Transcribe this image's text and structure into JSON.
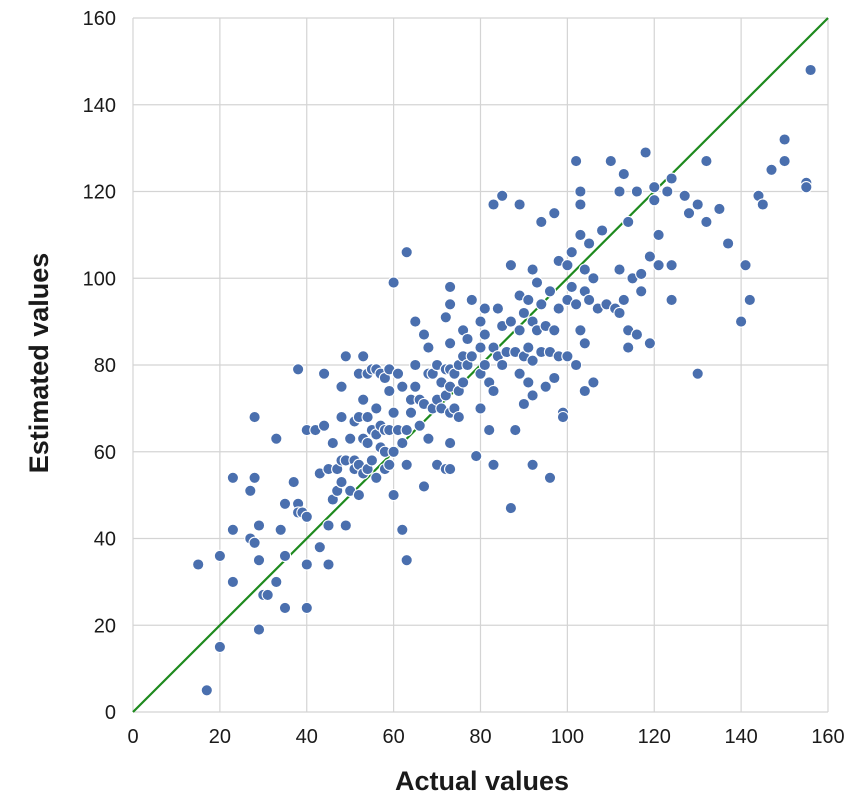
{
  "chart_data": {
    "type": "scatter",
    "title": "",
    "xlabel": "Actual values",
    "ylabel": "Estimated values",
    "xlim": [
      0,
      160
    ],
    "ylim": [
      0,
      160
    ],
    "xticks": [
      "0",
      "20",
      "40",
      "60",
      "80",
      "100",
      "120",
      "140",
      "160"
    ],
    "yticks": [
      "0",
      "20",
      "40",
      "60",
      "80",
      "100",
      "120",
      "140",
      "160"
    ],
    "grid": true,
    "legend": "none",
    "colors": {
      "points": "#4a6fae",
      "point_edge": "#ffffff",
      "reference_line": "#1e8a1e",
      "grid": "#d4d4d4"
    },
    "reference_line": {
      "from": [
        0,
        0
      ],
      "to": [
        160,
        160
      ]
    },
    "series": [
      {
        "points": [
          [
            15,
            34
          ],
          [
            17,
            5
          ],
          [
            20,
            15
          ],
          [
            20,
            36
          ],
          [
            23,
            54
          ],
          [
            23,
            42
          ],
          [
            23,
            30
          ],
          [
            27,
            51
          ],
          [
            28,
            54
          ],
          [
            28,
            68
          ],
          [
            27,
            40
          ],
          [
            28,
            39
          ],
          [
            29,
            43
          ],
          [
            29,
            35
          ],
          [
            29,
            19
          ],
          [
            30,
            27
          ],
          [
            31,
            27
          ],
          [
            33,
            30
          ],
          [
            33,
            63
          ],
          [
            34,
            42
          ],
          [
            35,
            48
          ],
          [
            35,
            36
          ],
          [
            35,
            24
          ],
          [
            37,
            53
          ],
          [
            38,
            48
          ],
          [
            38,
            79
          ],
          [
            38,
            46
          ],
          [
            39,
            46
          ],
          [
            40,
            65
          ],
          [
            40,
            45
          ],
          [
            40,
            34
          ],
          [
            40,
            24
          ],
          [
            42,
            65
          ],
          [
            43,
            55
          ],
          [
            43,
            38
          ],
          [
            44,
            78
          ],
          [
            44,
            66
          ],
          [
            45,
            56
          ],
          [
            45,
            43
          ],
          [
            45,
            34
          ],
          [
            46,
            62
          ],
          [
            46,
            49
          ],
          [
            47,
            56
          ],
          [
            47,
            51
          ],
          [
            48,
            75
          ],
          [
            48,
            68
          ],
          [
            48,
            58
          ],
          [
            48,
            53
          ],
          [
            49,
            82
          ],
          [
            49,
            58
          ],
          [
            49,
            43
          ],
          [
            50,
            63
          ],
          [
            50,
            51
          ],
          [
            51,
            67
          ],
          [
            51,
            58
          ],
          [
            51,
            56
          ],
          [
            52,
            78
          ],
          [
            52,
            68
          ],
          [
            52,
            57
          ],
          [
            52,
            50
          ],
          [
            53,
            82
          ],
          [
            53,
            72
          ],
          [
            53,
            63
          ],
          [
            53,
            55
          ],
          [
            54,
            78
          ],
          [
            54,
            68
          ],
          [
            54,
            62
          ],
          [
            54,
            56
          ],
          [
            55,
            79
          ],
          [
            55,
            65
          ],
          [
            55,
            58
          ],
          [
            56,
            79
          ],
          [
            56,
            70
          ],
          [
            56,
            64
          ],
          [
            56,
            54
          ],
          [
            57,
            78
          ],
          [
            57,
            66
          ],
          [
            57,
            61
          ],
          [
            58,
            77
          ],
          [
            58,
            65
          ],
          [
            58,
            60
          ],
          [
            58,
            56
          ],
          [
            59,
            79
          ],
          [
            59,
            74
          ],
          [
            59,
            65
          ],
          [
            59,
            57
          ],
          [
            60,
            99
          ],
          [
            60,
            69
          ],
          [
            60,
            60
          ],
          [
            60,
            50
          ],
          [
            61,
            78
          ],
          [
            61,
            65
          ],
          [
            62,
            75
          ],
          [
            62,
            62
          ],
          [
            62,
            42
          ],
          [
            63,
            106
          ],
          [
            63,
            65
          ],
          [
            63,
            57
          ],
          [
            63,
            35
          ],
          [
            64,
            72
          ],
          [
            64,
            69
          ],
          [
            65,
            90
          ],
          [
            65,
            80
          ],
          [
            65,
            75
          ],
          [
            66,
            72
          ],
          [
            66,
            66
          ],
          [
            67,
            87
          ],
          [
            67,
            71
          ],
          [
            67,
            52
          ],
          [
            68,
            84
          ],
          [
            68,
            78
          ],
          [
            68,
            63
          ],
          [
            69,
            78
          ],
          [
            69,
            70
          ],
          [
            70,
            80
          ],
          [
            70,
            72
          ],
          [
            70,
            57
          ],
          [
            71,
            76
          ],
          [
            71,
            70
          ],
          [
            72,
            91
          ],
          [
            72,
            79
          ],
          [
            72,
            73
          ],
          [
            72,
            56
          ],
          [
            73,
            98
          ],
          [
            73,
            94
          ],
          [
            73,
            85
          ],
          [
            73,
            79
          ],
          [
            73,
            75
          ],
          [
            73,
            69
          ],
          [
            73,
            62
          ],
          [
            73,
            56
          ],
          [
            74,
            78
          ],
          [
            74,
            70
          ],
          [
            75,
            80
          ],
          [
            75,
            74
          ],
          [
            75,
            68
          ],
          [
            76,
            88
          ],
          [
            76,
            82
          ],
          [
            76,
            76
          ],
          [
            77,
            86
          ],
          [
            77,
            80
          ],
          [
            78,
            95
          ],
          [
            78,
            82
          ],
          [
            79,
            59
          ],
          [
            80,
            90
          ],
          [
            80,
            84
          ],
          [
            80,
            78
          ],
          [
            80,
            70
          ],
          [
            81,
            93
          ],
          [
            81,
            87
          ],
          [
            81,
            80
          ],
          [
            82,
            76
          ],
          [
            82,
            65
          ],
          [
            83,
            117
          ],
          [
            83,
            84
          ],
          [
            83,
            74
          ],
          [
            83,
            57
          ],
          [
            84,
            93
          ],
          [
            84,
            82
          ],
          [
            85,
            119
          ],
          [
            85,
            89
          ],
          [
            85,
            80
          ],
          [
            86,
            83
          ],
          [
            87,
            103
          ],
          [
            87,
            90
          ],
          [
            87,
            47
          ],
          [
            88,
            83
          ],
          [
            88,
            65
          ],
          [
            89,
            117
          ],
          [
            89,
            96
          ],
          [
            89,
            88
          ],
          [
            89,
            78
          ],
          [
            90,
            92
          ],
          [
            90,
            82
          ],
          [
            90,
            71
          ],
          [
            91,
            95
          ],
          [
            91,
            84
          ],
          [
            91,
            76
          ],
          [
            92,
            102
          ],
          [
            92,
            90
          ],
          [
            92,
            81
          ],
          [
            92,
            73
          ],
          [
            92,
            57
          ],
          [
            93,
            99
          ],
          [
            93,
            88
          ],
          [
            94,
            113
          ],
          [
            94,
            94
          ],
          [
            94,
            83
          ],
          [
            95,
            89
          ],
          [
            95,
            75
          ],
          [
            96,
            97
          ],
          [
            96,
            83
          ],
          [
            96,
            54
          ],
          [
            97,
            115
          ],
          [
            97,
            88
          ],
          [
            97,
            77
          ],
          [
            98,
            104
          ],
          [
            98,
            93
          ],
          [
            98,
            82
          ],
          [
            99,
            69
          ],
          [
            99,
            68
          ],
          [
            100,
            103
          ],
          [
            100,
            95
          ],
          [
            100,
            82
          ],
          [
            101,
            106
          ],
          [
            101,
            98
          ],
          [
            102,
            127
          ],
          [
            102,
            94
          ],
          [
            102,
            80
          ],
          [
            103,
            120
          ],
          [
            103,
            117
          ],
          [
            103,
            110
          ],
          [
            103,
            88
          ],
          [
            104,
            102
          ],
          [
            104,
            97
          ],
          [
            104,
            85
          ],
          [
            104,
            74
          ],
          [
            105,
            108
          ],
          [
            105,
            95
          ],
          [
            106,
            76
          ],
          [
            106,
            100
          ],
          [
            107,
            93
          ],
          [
            108,
            111
          ],
          [
            109,
            94
          ],
          [
            110,
            127
          ],
          [
            111,
            93
          ],
          [
            112,
            120
          ],
          [
            112,
            102
          ],
          [
            112,
            92
          ],
          [
            113,
            124
          ],
          [
            113,
            95
          ],
          [
            114,
            113
          ],
          [
            114,
            88
          ],
          [
            114,
            84
          ],
          [
            115,
            100
          ],
          [
            116,
            120
          ],
          [
            116,
            87
          ],
          [
            117,
            101
          ],
          [
            117,
            97
          ],
          [
            118,
            129
          ],
          [
            119,
            105
          ],
          [
            119,
            85
          ],
          [
            120,
            121
          ],
          [
            120,
            118
          ],
          [
            121,
            110
          ],
          [
            121,
            103
          ],
          [
            123,
            120
          ],
          [
            124,
            123
          ],
          [
            124,
            103
          ],
          [
            124,
            95
          ],
          [
            127,
            119
          ],
          [
            128,
            115
          ],
          [
            130,
            117
          ],
          [
            130,
            78
          ],
          [
            132,
            127
          ],
          [
            132,
            113
          ],
          [
            135,
            116
          ],
          [
            137,
            108
          ],
          [
            140,
            90
          ],
          [
            141,
            103
          ],
          [
            142,
            95
          ],
          [
            144,
            119
          ],
          [
            145,
            117
          ],
          [
            147,
            125
          ],
          [
            150,
            132
          ],
          [
            150,
            127
          ],
          [
            155,
            122
          ],
          [
            155,
            121
          ],
          [
            156,
            148
          ]
        ]
      }
    ]
  }
}
